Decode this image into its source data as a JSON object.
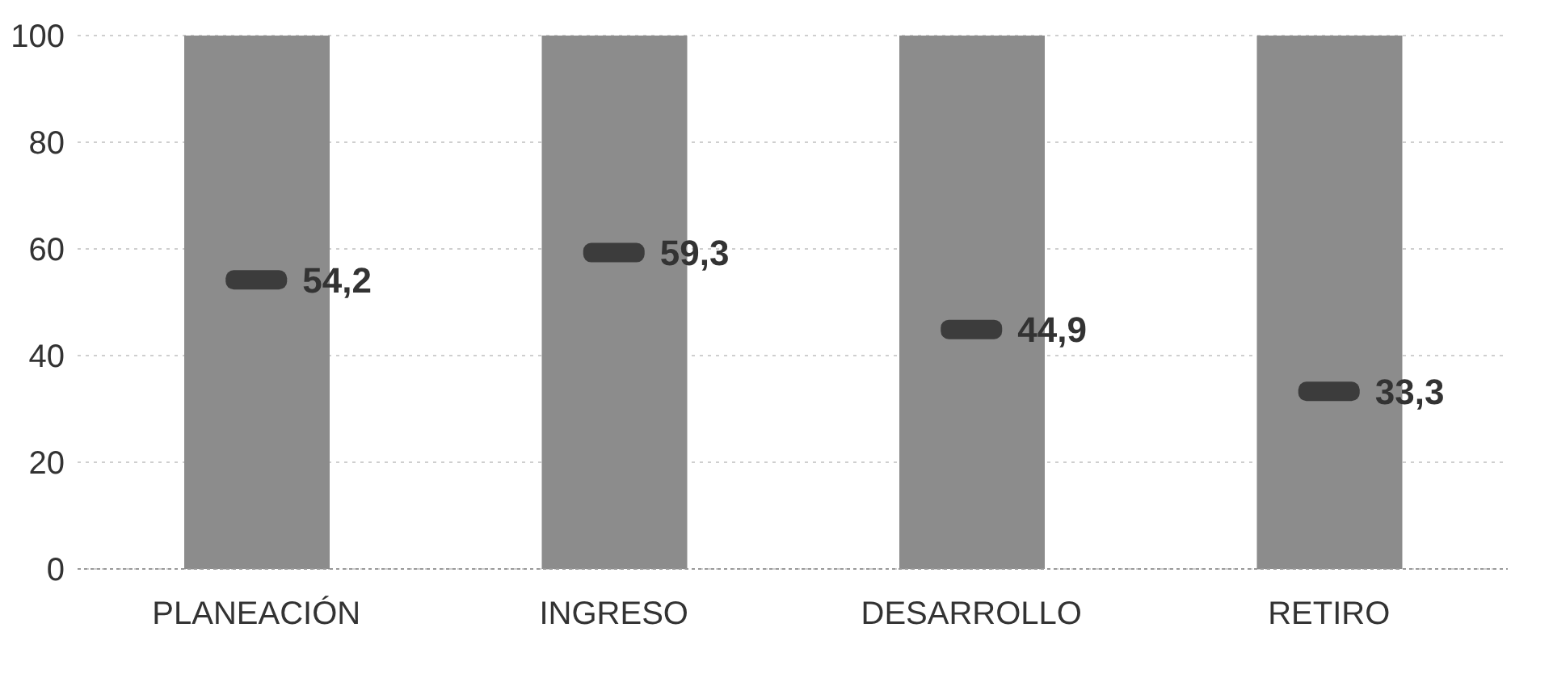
{
  "chart_data": {
    "type": "bar",
    "categories": [
      "PLANEACIÓN",
      "INGRESO",
      "DESARROLLO",
      "RETIRO"
    ],
    "series": [
      {
        "color": "#8c8c8c",
        "values": [
          100,
          100,
          100,
          100
        ]
      },
      {
        "type": "scatter",
        "color": "#3c3c3c",
        "values": [
          54.2,
          59.3,
          44.9,
          33.3
        ],
        "value_labels": [
          "54,2",
          "59,3",
          "44,9",
          "33,3"
        ]
      }
    ],
    "ylim": [
      0,
      100
    ],
    "yticks": [
      0,
      20,
      40,
      60,
      80,
      100
    ],
    "grid": "y",
    "legend": false,
    "marker": "square"
  }
}
